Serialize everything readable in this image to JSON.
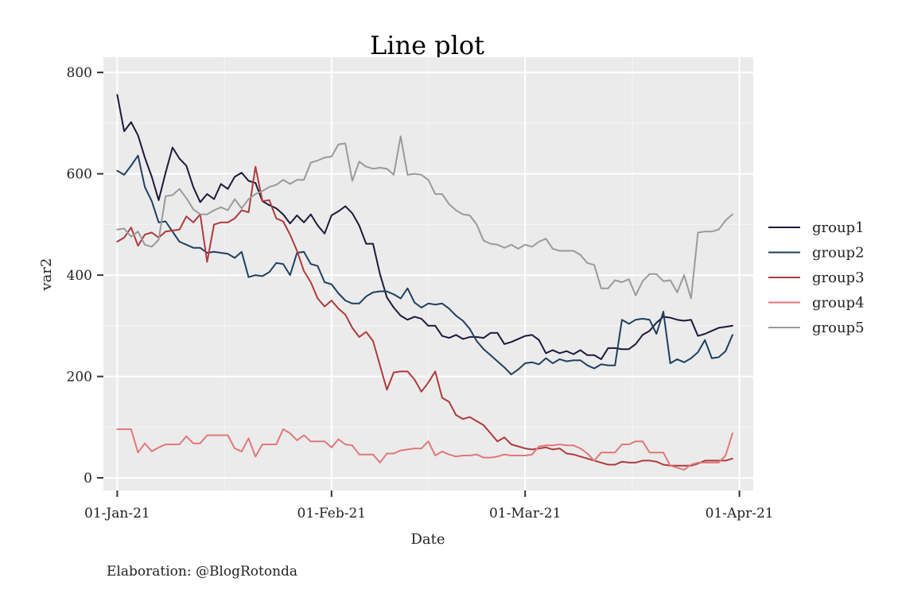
{
  "chart_data": {
    "type": "line",
    "title": "Line plot",
    "xlabel": "Date",
    "ylabel": "var2",
    "caption": "Elaboration: @BlogRotonda",
    "x_start": "2021-01-01",
    "x_ticks": [
      {
        "date": "2021-01-01",
        "label": "01-Jan-21"
      },
      {
        "date": "2021-02-01",
        "label": "01-Feb-21"
      },
      {
        "date": "2021-03-01",
        "label": "01-Mar-21"
      },
      {
        "date": "2021-04-01",
        "label": "01-Apr-21"
      }
    ],
    "y_ticks": [
      0,
      200,
      400,
      600,
      800
    ],
    "ylim": [
      -25,
      830
    ],
    "xlim": [
      "2020-12-30",
      "2021-04-03"
    ],
    "grid": true,
    "legend_position": "right",
    "series": [
      {
        "name": "group1",
        "color": "#1c1a3c",
        "values": [
          756,
          684,
          702,
          676,
          632,
          594,
          548,
          602,
          652,
          630,
          616,
          574,
          544,
          560,
          550,
          580,
          570,
          594,
          602,
          586,
          582,
          546,
          538,
          532,
          520,
          502,
          518,
          504,
          520,
          498,
          482,
          518,
          526,
          536,
          522,
          498,
          462,
          462,
          402,
          356,
          336,
          320,
          312,
          318,
          314,
          300,
          300,
          280,
          276,
          282,
          274,
          278,
          278,
          276,
          286,
          286,
          264,
          268,
          274,
          280,
          282,
          272,
          246,
          252,
          246,
          250,
          244,
          252,
          242,
          242,
          234,
          256,
          256,
          254,
          254,
          264,
          282,
          290,
          306,
          318,
          316,
          312,
          310,
          312,
          280,
          284,
          290,
          296,
          298,
          300
        ]
      },
      {
        "name": "group2",
        "color": "#1e4060",
        "values": [
          606,
          598,
          616,
          636,
          574,
          546,
          504,
          506,
          486,
          466,
          460,
          454,
          454,
          444,
          446,
          444,
          442,
          434,
          446,
          396,
          400,
          398,
          406,
          424,
          422,
          400,
          444,
          446,
          422,
          418,
          386,
          382,
          364,
          350,
          344,
          344,
          358,
          366,
          368,
          368,
          362,
          354,
          374,
          346,
          336,
          344,
          342,
          344,
          334,
          320,
          310,
          294,
          270,
          254,
          242,
          230,
          218,
          204,
          214,
          226,
          228,
          224,
          236,
          226,
          234,
          230,
          232,
          232,
          222,
          216,
          224,
          222,
          222,
          312,
          304,
          312,
          314,
          312,
          284,
          328,
          226,
          234,
          228,
          236,
          248,
          272,
          236,
          238,
          250,
          282
        ]
      },
      {
        "name": "group3",
        "color": "#b03a3c",
        "values": [
          466,
          474,
          494,
          458,
          480,
          484,
          474,
          486,
          488,
          490,
          516,
          504,
          520,
          426,
          500,
          504,
          504,
          512,
          528,
          524,
          614,
          546,
          548,
          512,
          506,
          480,
          448,
          408,
          386,
          354,
          338,
          350,
          334,
          322,
          296,
          278,
          288,
          270,
          222,
          174,
          208,
          210,
          210,
          194,
          170,
          188,
          210,
          158,
          150,
          124,
          116,
          120,
          112,
          104,
          88,
          72,
          80,
          66,
          62,
          58,
          56,
          58,
          60,
          56,
          58,
          48,
          46,
          42,
          38,
          34,
          30,
          26,
          26,
          32,
          30,
          30,
          34,
          34,
          32,
          26,
          24,
          24,
          24,
          24,
          28,
          34,
          34,
          34,
          34,
          38
        ]
      },
      {
        "name": "group4",
        "color": "#e07878",
        "values": [
          96,
          96,
          96,
          50,
          68,
          52,
          60,
          66,
          66,
          66,
          82,
          68,
          68,
          84,
          84,
          84,
          84,
          58,
          52,
          78,
          42,
          66,
          66,
          66,
          96,
          88,
          74,
          84,
          72,
          72,
          72,
          60,
          76,
          66,
          64,
          46,
          46,
          46,
          30,
          48,
          48,
          54,
          56,
          58,
          58,
          72,
          44,
          52,
          46,
          42,
          44,
          44,
          46,
          40,
          40,
          42,
          46,
          44,
          44,
          44,
          46,
          62,
          64,
          64,
          66,
          64,
          64,
          58,
          48,
          34,
          50,
          50,
          50,
          66,
          66,
          72,
          72,
          50,
          50,
          50,
          24,
          20,
          16,
          26,
          30,
          30,
          30,
          30,
          44,
          88
        ]
      },
      {
        "name": "group5",
        "color": "#9a9a9a",
        "values": [
          490,
          492,
          476,
          486,
          460,
          456,
          470,
          556,
          558,
          570,
          552,
          530,
          520,
          520,
          528,
          534,
          528,
          550,
          532,
          550,
          560,
          566,
          574,
          578,
          588,
          580,
          588,
          588,
          622,
          626,
          632,
          634,
          658,
          660,
          586,
          624,
          614,
          610,
          612,
          610,
          598,
          674,
          598,
          600,
          598,
          588,
          560,
          560,
          540,
          528,
          520,
          518,
          500,
          468,
          462,
          460,
          454,
          460,
          452,
          460,
          456,
          466,
          472,
          452,
          448,
          448,
          448,
          440,
          424,
          420,
          374,
          374,
          390,
          386,
          392,
          360,
          388,
          402,
          402,
          388,
          390,
          366,
          400,
          354,
          484,
          486,
          486,
          490,
          508,
          520
        ]
      }
    ]
  }
}
